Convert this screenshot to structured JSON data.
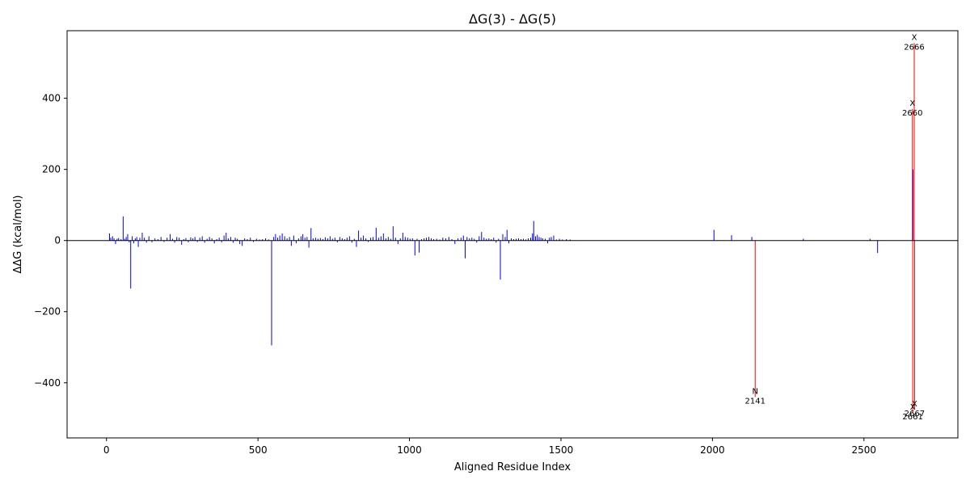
{
  "chart_data": {
    "type": "bar",
    "title": "ΔG(3) - ΔG(5)",
    "xlabel": "Aligned Residue Index",
    "ylabel": "ΔΔG (kcal/mol)",
    "xlim": [
      -130,
      2810
    ],
    "ylim": [
      -555,
      590
    ],
    "xticks": [
      0,
      500,
      1000,
      1500,
      2000,
      2500
    ],
    "yticks": [
      -400,
      -200,
      0,
      200,
      400
    ],
    "tick_labels": {
      "x": [
        "0",
        "500",
        "1000",
        "1500",
        "2000",
        "2500"
      ],
      "y": [
        "−400",
        "−200",
        "0",
        "200",
        "400"
      ]
    },
    "grid": false,
    "zero_line": true,
    "colors": {
      "normal": "#0000ff",
      "highlight": "#ff0000",
      "zero_line": "#000000"
    },
    "bars": [
      {
        "x": 10,
        "y": 20
      },
      {
        "x": 14,
        "y": 8
      },
      {
        "x": 20,
        "y": 12
      },
      {
        "x": 25,
        "y": 6
      },
      {
        "x": 30,
        "y": -10
      },
      {
        "x": 35,
        "y": 5
      },
      {
        "x": 40,
        "y": 7
      },
      {
        "x": 48,
        "y": 4
      },
      {
        "x": 55,
        "y": 68
      },
      {
        "x": 60,
        "y": 5
      },
      {
        "x": 65,
        "y": 10
      },
      {
        "x": 70,
        "y": 18
      },
      {
        "x": 75,
        "y": -5
      },
      {
        "x": 80,
        "y": -135
      },
      {
        "x": 85,
        "y": 12
      },
      {
        "x": 90,
        "y": -8
      },
      {
        "x": 95,
        "y": 6
      },
      {
        "x": 100,
        "y": 10
      },
      {
        "x": 105,
        "y": -18
      },
      {
        "x": 110,
        "y": 8
      },
      {
        "x": 118,
        "y": 22
      },
      {
        "x": 125,
        "y": 8
      },
      {
        "x": 132,
        "y": -6
      },
      {
        "x": 140,
        "y": 12
      },
      {
        "x": 150,
        "y": -5
      },
      {
        "x": 160,
        "y": 6
      },
      {
        "x": 170,
        "y": 4
      },
      {
        "x": 180,
        "y": 10
      },
      {
        "x": 190,
        "y": -4
      },
      {
        "x": 200,
        "y": 8
      },
      {
        "x": 210,
        "y": 18
      },
      {
        "x": 218,
        "y": 5
      },
      {
        "x": 225,
        "y": -6
      },
      {
        "x": 232,
        "y": 10
      },
      {
        "x": 240,
        "y": 8
      },
      {
        "x": 248,
        "y": -12
      },
      {
        "x": 255,
        "y": 4
      },
      {
        "x": 262,
        "y": 7
      },
      {
        "x": 270,
        "y": -5
      },
      {
        "x": 278,
        "y": 9
      },
      {
        "x": 285,
        "y": 6
      },
      {
        "x": 292,
        "y": 10
      },
      {
        "x": 300,
        "y": -4
      },
      {
        "x": 308,
        "y": 8
      },
      {
        "x": 316,
        "y": 12
      },
      {
        "x": 324,
        "y": -6
      },
      {
        "x": 332,
        "y": 5
      },
      {
        "x": 340,
        "y": 10
      },
      {
        "x": 348,
        "y": 6
      },
      {
        "x": 356,
        "y": -8
      },
      {
        "x": 364,
        "y": 4
      },
      {
        "x": 372,
        "y": 8
      },
      {
        "x": 380,
        "y": -5
      },
      {
        "x": 388,
        "y": 14
      },
      {
        "x": 395,
        "y": 22
      },
      {
        "x": 402,
        "y": 6
      },
      {
        "x": 410,
        "y": 10
      },
      {
        "x": 418,
        "y": -6
      },
      {
        "x": 425,
        "y": 8
      },
      {
        "x": 432,
        "y": 5
      },
      {
        "x": 440,
        "y": -10
      },
      {
        "x": 448,
        "y": -15
      },
      {
        "x": 456,
        "y": 6
      },
      {
        "x": 465,
        "y": 4
      },
      {
        "x": 475,
        "y": 8
      },
      {
        "x": 485,
        "y": -4
      },
      {
        "x": 495,
        "y": 5
      },
      {
        "x": 505,
        "y": 3
      },
      {
        "x": 515,
        "y": 4
      },
      {
        "x": 525,
        "y": 6
      },
      {
        "x": 535,
        "y": 3
      },
      {
        "x": 545,
        "y": -295
      },
      {
        "x": 552,
        "y": 10
      },
      {
        "x": 558,
        "y": 18
      },
      {
        "x": 565,
        "y": 8
      },
      {
        "x": 572,
        "y": 14
      },
      {
        "x": 580,
        "y": 20
      },
      {
        "x": 588,
        "y": 12
      },
      {
        "x": 596,
        "y": 6
      },
      {
        "x": 604,
        "y": 10
      },
      {
        "x": 610,
        "y": -15
      },
      {
        "x": 618,
        "y": 14
      },
      {
        "x": 626,
        "y": -8
      },
      {
        "x": 634,
        "y": 6
      },
      {
        "x": 642,
        "y": 12
      },
      {
        "x": 648,
        "y": 18
      },
      {
        "x": 655,
        "y": 8
      },
      {
        "x": 662,
        "y": 10
      },
      {
        "x": 668,
        "y": -20
      },
      {
        "x": 675,
        "y": 35
      },
      {
        "x": 682,
        "y": 6
      },
      {
        "x": 690,
        "y": 8
      },
      {
        "x": 698,
        "y": 5
      },
      {
        "x": 706,
        "y": 7
      },
      {
        "x": 714,
        "y": 4
      },
      {
        "x": 722,
        "y": 9
      },
      {
        "x": 730,
        "y": 6
      },
      {
        "x": 738,
        "y": 12
      },
      {
        "x": 746,
        "y": 5
      },
      {
        "x": 754,
        "y": 8
      },
      {
        "x": 762,
        "y": -5
      },
      {
        "x": 770,
        "y": 10
      },
      {
        "x": 778,
        "y": 6
      },
      {
        "x": 786,
        "y": 4
      },
      {
        "x": 794,
        "y": 8
      },
      {
        "x": 802,
        "y": 12
      },
      {
        "x": 810,
        "y": -6
      },
      {
        "x": 818,
        "y": 5
      },
      {
        "x": 825,
        "y": -18
      },
      {
        "x": 832,
        "y": 28
      },
      {
        "x": 840,
        "y": 8
      },
      {
        "x": 848,
        "y": 14
      },
      {
        "x": 856,
        "y": 6
      },
      {
        "x": 864,
        "y": -4
      },
      {
        "x": 872,
        "y": 8
      },
      {
        "x": 880,
        "y": 10
      },
      {
        "x": 890,
        "y": 36
      },
      {
        "x": 898,
        "y": 8
      },
      {
        "x": 906,
        "y": 12
      },
      {
        "x": 914,
        "y": 20
      },
      {
        "x": 922,
        "y": 6
      },
      {
        "x": 930,
        "y": 10
      },
      {
        "x": 938,
        "y": 5
      },
      {
        "x": 946,
        "y": 40
      },
      {
        "x": 954,
        "y": 8
      },
      {
        "x": 962,
        "y": -10
      },
      {
        "x": 970,
        "y": 6
      },
      {
        "x": 978,
        "y": 22
      },
      {
        "x": 986,
        "y": 10
      },
      {
        "x": 994,
        "y": 8
      },
      {
        "x": 1002,
        "y": 5
      },
      {
        "x": 1010,
        "y": 6
      },
      {
        "x": 1018,
        "y": -42
      },
      {
        "x": 1025,
        "y": 5
      },
      {
        "x": 1032,
        "y": -34
      },
      {
        "x": 1040,
        "y": 4
      },
      {
        "x": 1048,
        "y": 6
      },
      {
        "x": 1056,
        "y": 8
      },
      {
        "x": 1064,
        "y": 10
      },
      {
        "x": 1072,
        "y": 6
      },
      {
        "x": 1080,
        "y": 4
      },
      {
        "x": 1090,
        "y": 5
      },
      {
        "x": 1100,
        "y": 3
      },
      {
        "x": 1110,
        "y": 8
      },
      {
        "x": 1120,
        "y": 6
      },
      {
        "x": 1130,
        "y": 10
      },
      {
        "x": 1140,
        "y": 4
      },
      {
        "x": 1150,
        "y": -10
      },
      {
        "x": 1160,
        "y": 6
      },
      {
        "x": 1170,
        "y": 8
      },
      {
        "x": 1178,
        "y": 14
      },
      {
        "x": 1184,
        "y": -50
      },
      {
        "x": 1190,
        "y": 10
      },
      {
        "x": 1198,
        "y": 6
      },
      {
        "x": 1206,
        "y": 8
      },
      {
        "x": 1214,
        "y": 5
      },
      {
        "x": 1222,
        "y": -6
      },
      {
        "x": 1230,
        "y": 12
      },
      {
        "x": 1238,
        "y": 24
      },
      {
        "x": 1246,
        "y": 8
      },
      {
        "x": 1254,
        "y": 5
      },
      {
        "x": 1262,
        "y": 6
      },
      {
        "x": 1270,
        "y": 4
      },
      {
        "x": 1278,
        "y": 8
      },
      {
        "x": 1286,
        "y": -6
      },
      {
        "x": 1294,
        "y": 5
      },
      {
        "x": 1300,
        "y": -110
      },
      {
        "x": 1308,
        "y": 18
      },
      {
        "x": 1316,
        "y": 10
      },
      {
        "x": 1322,
        "y": 30
      },
      {
        "x": 1328,
        "y": -8
      },
      {
        "x": 1336,
        "y": 6
      },
      {
        "x": 1344,
        "y": 4
      },
      {
        "x": 1352,
        "y": 5
      },
      {
        "x": 1360,
        "y": 6
      },
      {
        "x": 1368,
        "y": 4
      },
      {
        "x": 1376,
        "y": 5
      },
      {
        "x": 1384,
        "y": 3
      },
      {
        "x": 1392,
        "y": 6
      },
      {
        "x": 1400,
        "y": 8
      },
      {
        "x": 1406,
        "y": 20
      },
      {
        "x": 1410,
        "y": 55
      },
      {
        "x": 1416,
        "y": 12
      },
      {
        "x": 1422,
        "y": 16
      },
      {
        "x": 1428,
        "y": 10
      },
      {
        "x": 1434,
        "y": 8
      },
      {
        "x": 1440,
        "y": 6
      },
      {
        "x": 1448,
        "y": 5
      },
      {
        "x": 1456,
        "y": -8
      },
      {
        "x": 1462,
        "y": 8
      },
      {
        "x": 1468,
        "y": 10
      },
      {
        "x": 1476,
        "y": 14
      },
      {
        "x": 1485,
        "y": 3
      },
      {
        "x": 1495,
        "y": 5
      },
      {
        "x": 1505,
        "y": 3
      },
      {
        "x": 1518,
        "y": 4
      },
      {
        "x": 1530,
        "y": 3
      },
      {
        "x": 2005,
        "y": 30
      },
      {
        "x": 2063,
        "y": 15
      },
      {
        "x": 2130,
        "y": 10
      },
      {
        "x": 2300,
        "y": 5
      },
      {
        "x": 2520,
        "y": 5
      },
      {
        "x": 2545,
        "y": -35
      },
      {
        "x": 2662,
        "y": 200
      }
    ],
    "highlighted": [
      {
        "x": 2141,
        "y": -440,
        "residue": "N",
        "index": "2141"
      },
      {
        "x": 2660,
        "y": 370,
        "residue": "X",
        "index": "2660"
      },
      {
        "x": 2666,
        "y": 555,
        "residue": "X",
        "index": "2666"
      },
      {
        "x": 2661,
        "y": -485,
        "residue": "X",
        "index": "2661"
      },
      {
        "x": 2667,
        "y": -475,
        "residue": "X",
        "index": "2667"
      }
    ]
  }
}
